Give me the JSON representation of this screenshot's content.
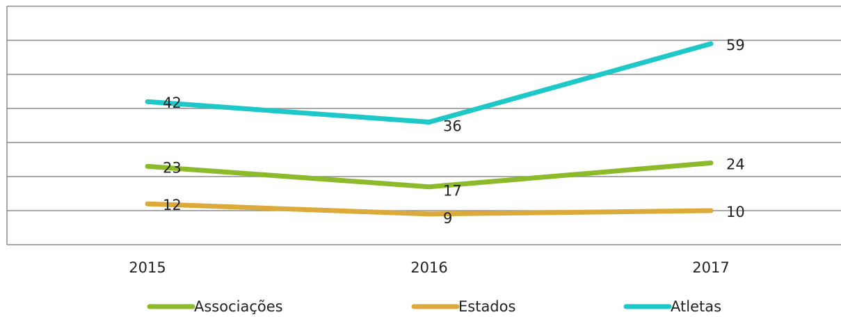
{
  "chart_data": {
    "type": "line",
    "categories": [
      "2015",
      "2016",
      "2017"
    ],
    "series": [
      {
        "name": "Associações",
        "color": "#8cba2b",
        "values": [
          23,
          17,
          24
        ]
      },
      {
        "name": "Estados",
        "color": "#dcaa3a",
        "values": [
          12,
          9,
          10
        ]
      },
      {
        "name": "Atletas",
        "color": "#1ec8c8",
        "values": [
          42,
          36,
          59
        ]
      }
    ],
    "ylim": [
      0,
      70
    ],
    "yticks": [
      0,
      10,
      20,
      30,
      40,
      50,
      60,
      70
    ],
    "grid": true,
    "legend": "bottom"
  }
}
